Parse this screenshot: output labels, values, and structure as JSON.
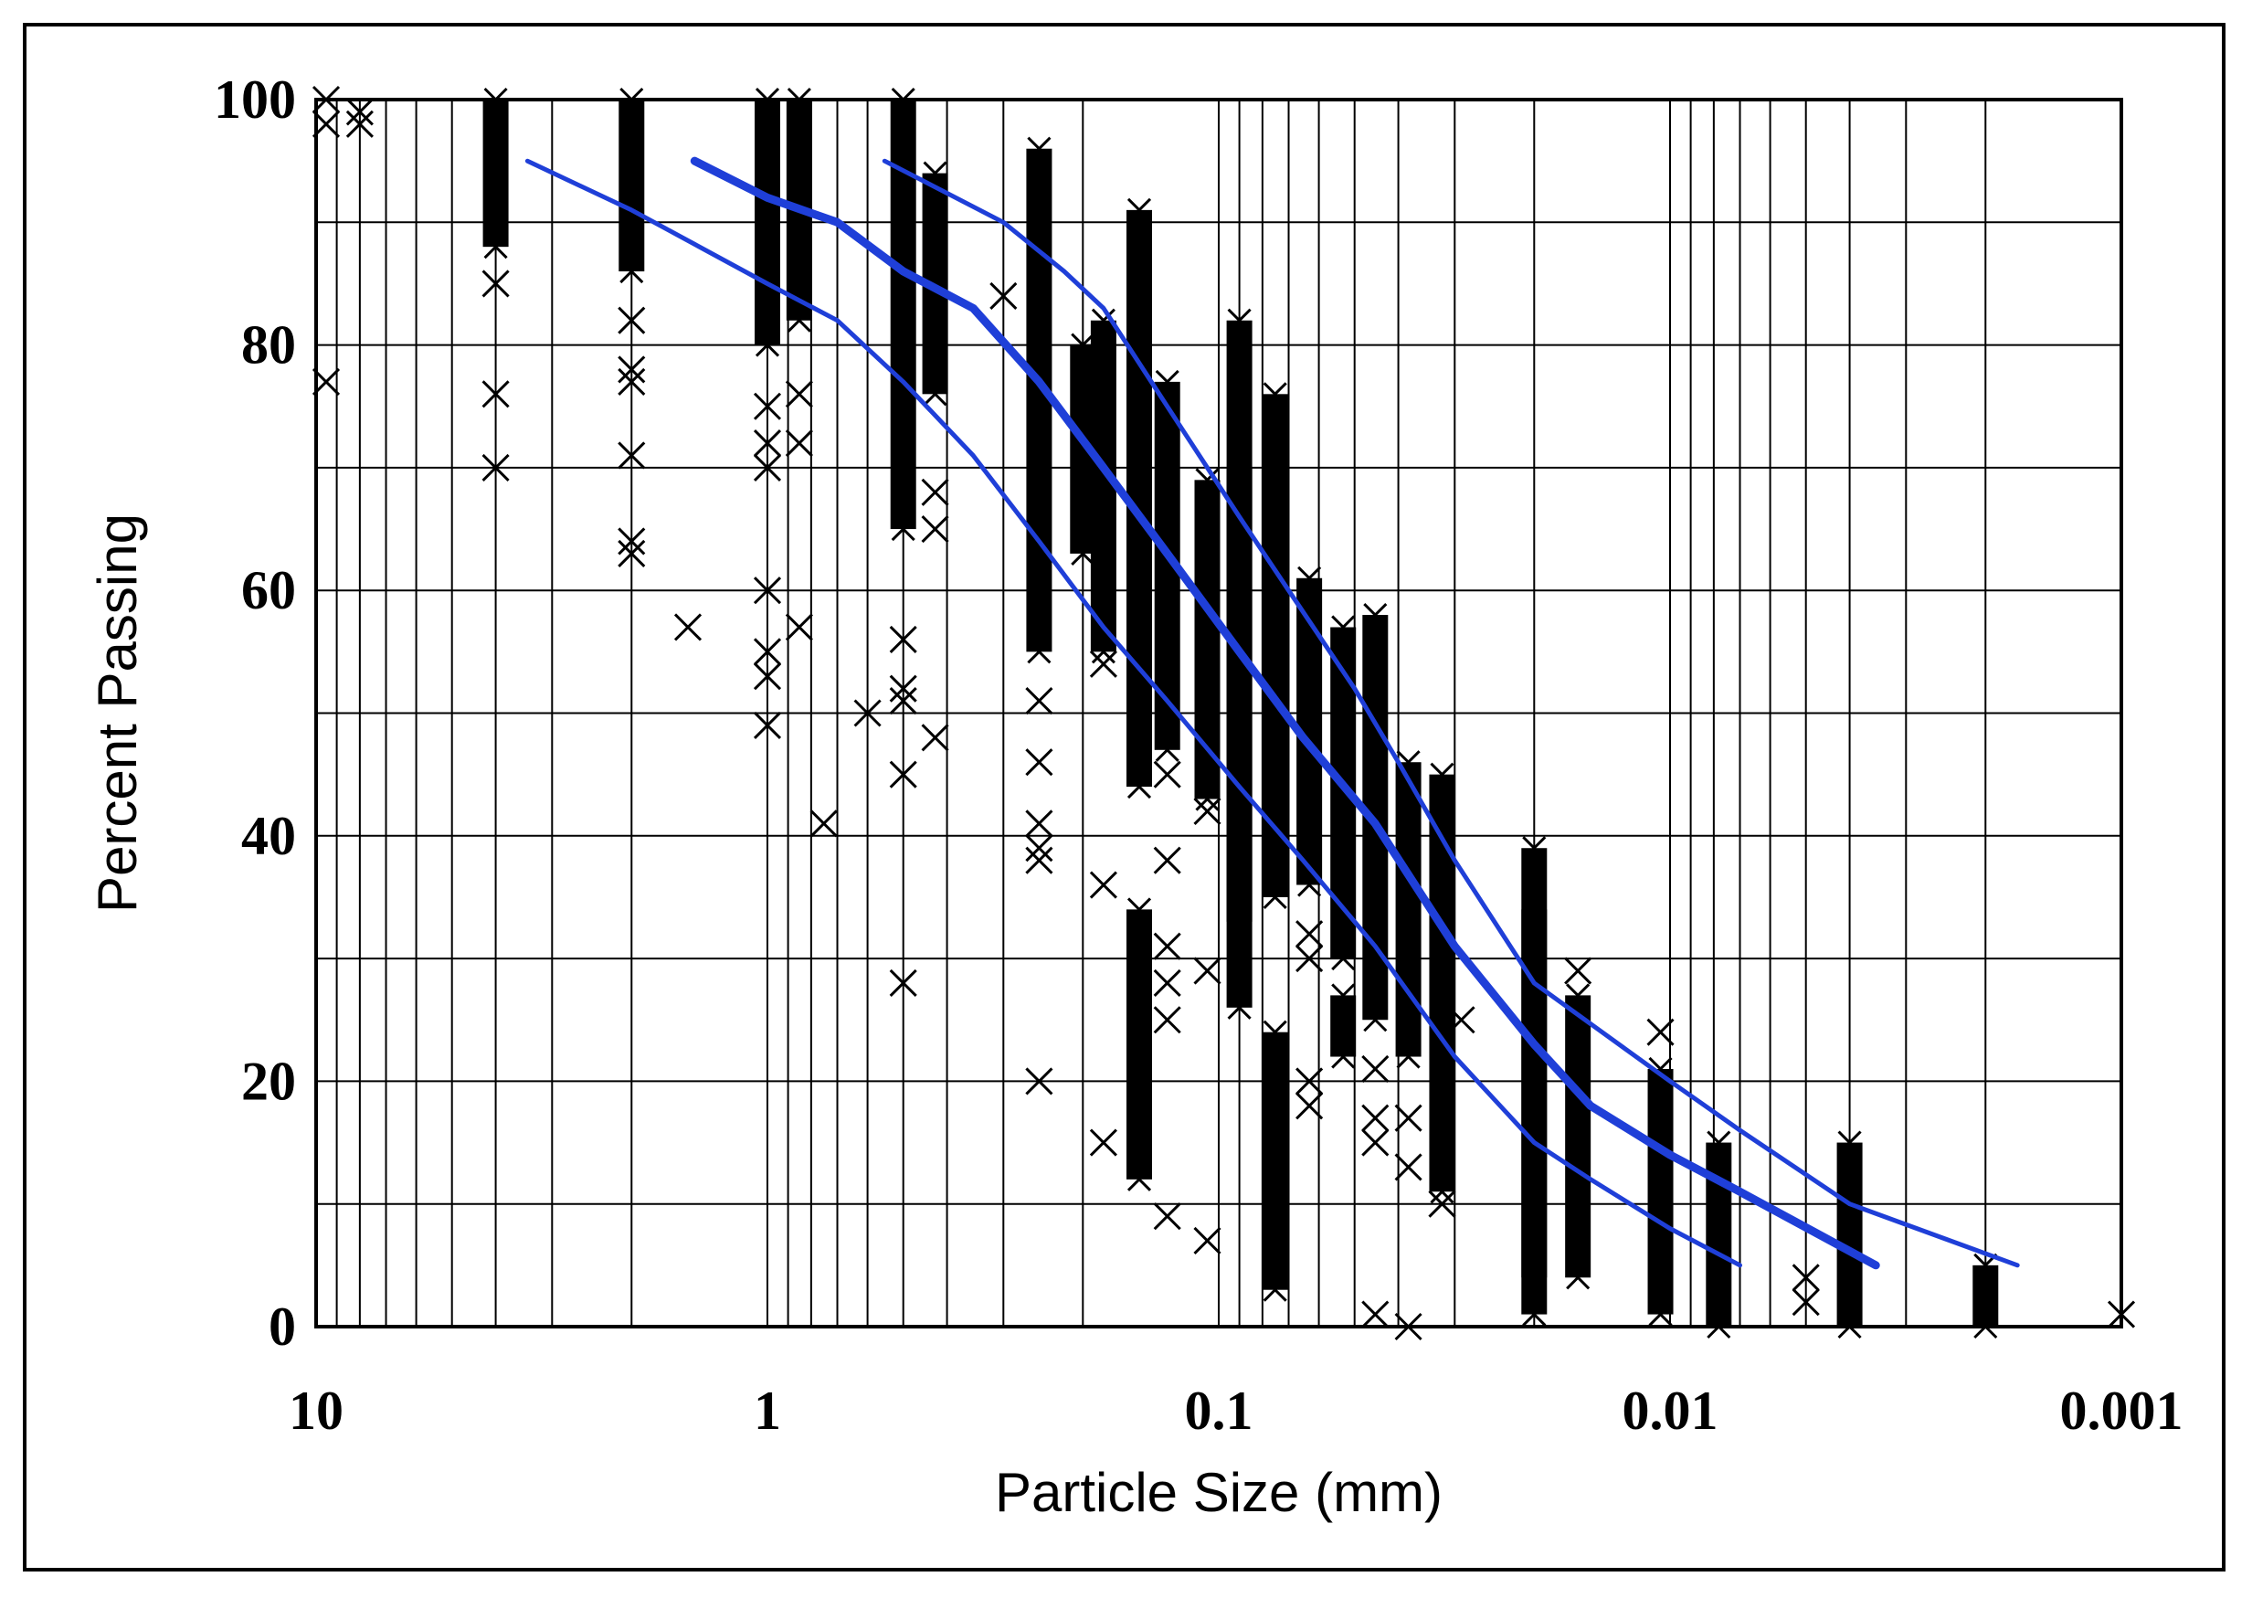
{
  "chart_data": {
    "type": "scatter",
    "title": "",
    "xlabel": "Particle Size (mm)",
    "ylabel": "Percent Passing",
    "x_scale": "log",
    "x_reversed": true,
    "xlim": [
      10,
      0.001
    ],
    "ylim": [
      0,
      100
    ],
    "x_ticks": [
      10,
      1,
      0.1,
      0.01,
      0.001
    ],
    "x_tick_labels": [
      "10",
      "1",
      "0.1",
      "0.01",
      "0.001"
    ],
    "y_ticks": [
      0,
      20,
      40,
      60,
      80,
      100
    ],
    "y_tick_labels": [
      "0",
      "20",
      "40",
      "60",
      "80",
      "100"
    ],
    "y_minor_gridlines": [
      10,
      30,
      50,
      70,
      90
    ],
    "grid": true,
    "legend": "none",
    "colors": {
      "points": "#000000",
      "curves": "#1f3fd8",
      "grid": "#000000"
    },
    "series": [
      {
        "marker": "x",
        "role": "gradation data (scatter)",
        "bands": [
          {
            "x": 9.5,
            "y": [
              98,
              100
            ]
          },
          {
            "x": 9.5,
            "y": [
              77
            ]
          },
          {
            "x": 8.0,
            "y": [
              98,
              99
            ]
          },
          {
            "x": 4.0,
            "y": [
              88,
              100
            ]
          },
          {
            "x": 4.0,
            "y": [
              85,
              76,
              70
            ]
          },
          {
            "x": 2.0,
            "y": [
              86,
              100
            ]
          },
          {
            "x": 2.0,
            "y": [
              82,
              78,
              77,
              71,
              64,
              63
            ]
          },
          {
            "x": 1.5,
            "y": [
              57
            ]
          },
          {
            "x": 1.0,
            "y": [
              80,
              100
            ]
          },
          {
            "x": 1.0,
            "y": [
              75,
              72,
              70,
              60,
              55,
              53,
              49
            ]
          },
          {
            "x": 0.85,
            "y": [
              82,
              100
            ]
          },
          {
            "x": 0.85,
            "y": [
              76,
              72,
              57
            ]
          },
          {
            "x": 0.75,
            "y": [
              41
            ]
          },
          {
            "x": 0.6,
            "y": [
              50
            ]
          },
          {
            "x": 0.5,
            "y": [
              65,
              100
            ]
          },
          {
            "x": 0.5,
            "y": [
              56,
              52,
              51,
              45,
              28
            ]
          },
          {
            "x": 0.425,
            "y": [
              76,
              94
            ]
          },
          {
            "x": 0.425,
            "y": [
              68,
              65,
              48
            ]
          },
          {
            "x": 0.3,
            "y": [
              84
            ]
          },
          {
            "x": 0.25,
            "y": [
              55,
              96
            ]
          },
          {
            "x": 0.25,
            "y": [
              51,
              46,
              41,
              39,
              38,
              20
            ]
          },
          {
            "x": 0.2,
            "y": [
              80,
              63
            ]
          },
          {
            "x": 0.18,
            "y": [
              55,
              82
            ]
          },
          {
            "x": 0.18,
            "y": [
              54,
              36,
              15
            ]
          },
          {
            "x": 0.15,
            "y": [
              44,
              91
            ]
          },
          {
            "x": 0.15,
            "y": [
              34,
              12
            ]
          },
          {
            "x": 0.13,
            "y": [
              47,
              77
            ]
          },
          {
            "x": 0.13,
            "y": [
              45,
              38,
              31,
              28,
              25,
              9
            ]
          },
          {
            "x": 0.106,
            "y": [
              43,
              69
            ]
          },
          {
            "x": 0.106,
            "y": [
              42,
              29,
              7
            ]
          },
          {
            "x": 0.09,
            "y": [
              33,
              70
            ]
          },
          {
            "x": 0.09,
            "y": [
              82,
              26
            ]
          },
          {
            "x": 0.075,
            "y": [
              35,
              76
            ]
          },
          {
            "x": 0.075,
            "y": [
              24,
              3
            ]
          },
          {
            "x": 0.063,
            "y": [
              36,
              61
            ]
          },
          {
            "x": 0.063,
            "y": [
              32,
              30,
              20,
              18
            ]
          },
          {
            "x": 0.053,
            "y": [
              30,
              57
            ]
          },
          {
            "x": 0.053,
            "y": [
              27,
              22
            ]
          },
          {
            "x": 0.045,
            "y": [
              25,
              58
            ]
          },
          {
            "x": 0.045,
            "y": [
              21,
              17,
              15,
              1
            ]
          },
          {
            "x": 0.038,
            "y": [
              22,
              46
            ]
          },
          {
            "x": 0.038,
            "y": [
              17,
              13,
              0
            ]
          },
          {
            "x": 0.032,
            "y": [
              11,
              45
            ]
          },
          {
            "x": 0.032,
            "y": [
              10
            ]
          },
          {
            "x": 0.029,
            "y": [
              25
            ]
          },
          {
            "x": 0.02,
            "y": [
              4,
              34
            ]
          },
          {
            "x": 0.02,
            "y": [
              39,
              1
            ]
          },
          {
            "x": 0.016,
            "y": [
              4,
              27
            ]
          },
          {
            "x": 0.016,
            "y": [
              29
            ]
          },
          {
            "x": 0.0105,
            "y": [
              1,
              21
            ]
          },
          {
            "x": 0.0105,
            "y": [
              24
            ]
          },
          {
            "x": 0.0078,
            "y": [
              0,
              15
            ]
          },
          {
            "x": 0.005,
            "y": [
              2,
              4
            ]
          },
          {
            "x": 0.004,
            "y": [
              0,
              15
            ]
          },
          {
            "x": 0.002,
            "y": [
              0,
              5
            ]
          },
          {
            "x": 0.001,
            "y": [
              1
            ]
          }
        ]
      },
      {
        "name": "",
        "role": "upper envelope curve",
        "x": [
          0.55,
          0.3,
          0.22,
          0.18,
          0.13,
          0.09,
          0.07,
          0.05,
          0.04,
          0.03,
          0.02,
          0.01,
          0.007,
          0.004,
          0.0017
        ],
        "y": [
          95,
          90,
          86,
          83,
          75,
          66,
          60,
          52,
          46,
          38,
          28,
          20,
          16,
          10,
          5
        ]
      },
      {
        "name": "",
        "role": "middle curve",
        "x": [
          1.45,
          1.0,
          0.7,
          0.5,
          0.35,
          0.25,
          0.18,
          0.13,
          0.09,
          0.065,
          0.045,
          0.03,
          0.02,
          0.015,
          0.01,
          0.007,
          0.0035
        ],
        "y": [
          95,
          92,
          90,
          86,
          83,
          77,
          70,
          63,
          55,
          48,
          41,
          31,
          23,
          18,
          14,
          11,
          5
        ]
      },
      {
        "name": "",
        "role": "lower envelope curve",
        "x": [
          3.4,
          2.0,
          1.0,
          0.7,
          0.5,
          0.35,
          0.25,
          0.18,
          0.13,
          0.09,
          0.065,
          0.045,
          0.03,
          0.02,
          0.015,
          0.01,
          0.007
        ],
        "y": [
          95,
          91,
          85,
          82,
          77,
          71,
          64,
          57,
          51,
          44,
          38,
          31,
          22,
          15,
          12,
          8,
          5
        ]
      }
    ]
  }
}
